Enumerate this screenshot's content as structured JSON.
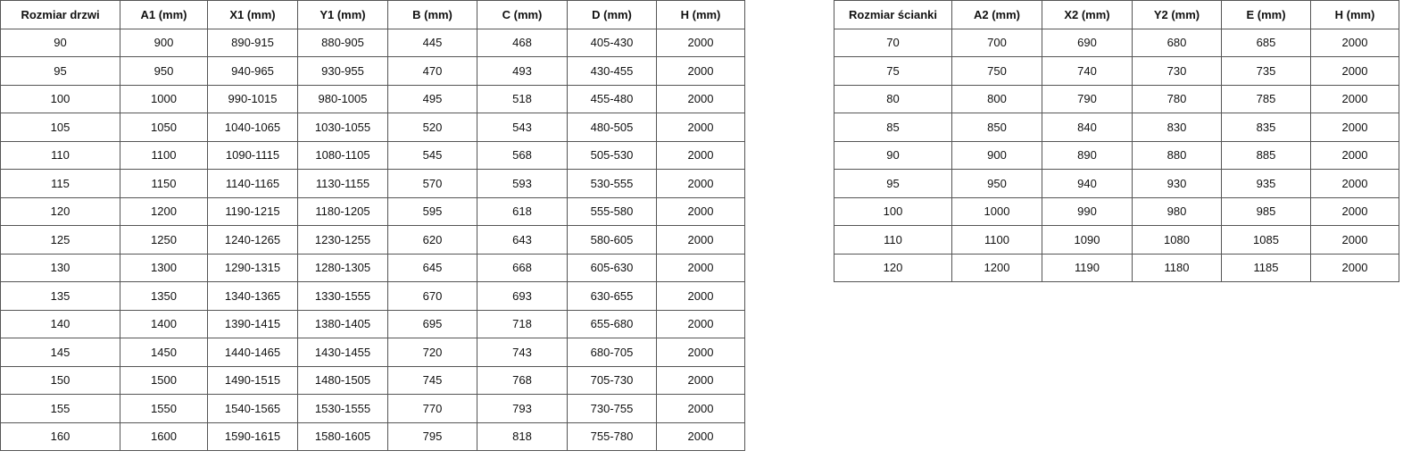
{
  "doors_table": {
    "headers": [
      "Rozmiar drzwi",
      "A1 (mm)",
      "X1 (mm)",
      "Y1 (mm)",
      "B (mm)",
      "C (mm)",
      "D (mm)",
      "H (mm)"
    ],
    "rows": [
      [
        "90",
        "900",
        "890-915",
        "880-905",
        "445",
        "468",
        "405-430",
        "2000"
      ],
      [
        "95",
        "950",
        "940-965",
        "930-955",
        "470",
        "493",
        "430-455",
        "2000"
      ],
      [
        "100",
        "1000",
        "990-1015",
        "980-1005",
        "495",
        "518",
        "455-480",
        "2000"
      ],
      [
        "105",
        "1050",
        "1040-1065",
        "1030-1055",
        "520",
        "543",
        "480-505",
        "2000"
      ],
      [
        "110",
        "1100",
        "1090-1115",
        "1080-1105",
        "545",
        "568",
        "505-530",
        "2000"
      ],
      [
        "115",
        "1150",
        "1140-1165",
        "1130-1155",
        "570",
        "593",
        "530-555",
        "2000"
      ],
      [
        "120",
        "1200",
        "1190-1215",
        "1180-1205",
        "595",
        "618",
        "555-580",
        "2000"
      ],
      [
        "125",
        "1250",
        "1240-1265",
        "1230-1255",
        "620",
        "643",
        "580-605",
        "2000"
      ],
      [
        "130",
        "1300",
        "1290-1315",
        "1280-1305",
        "645",
        "668",
        "605-630",
        "2000"
      ],
      [
        "135",
        "1350",
        "1340-1365",
        "1330-1555",
        "670",
        "693",
        "630-655",
        "2000"
      ],
      [
        "140",
        "1400",
        "1390-1415",
        "1380-1405",
        "695",
        "718",
        "655-680",
        "2000"
      ],
      [
        "145",
        "1450",
        "1440-1465",
        "1430-1455",
        "720",
        "743",
        "680-705",
        "2000"
      ],
      [
        "150",
        "1500",
        "1490-1515",
        "1480-1505",
        "745",
        "768",
        "705-730",
        "2000"
      ],
      [
        "155",
        "1550",
        "1540-1565",
        "1530-1555",
        "770",
        "793",
        "730-755",
        "2000"
      ],
      [
        "160",
        "1600",
        "1590-1615",
        "1580-1605",
        "795",
        "818",
        "755-780",
        "2000"
      ]
    ]
  },
  "wall_table": {
    "headers": [
      "Rozmiar ścianki",
      "A2 (mm)",
      "X2 (mm)",
      "Y2 (mm)",
      "E (mm)",
      "H (mm)"
    ],
    "rows": [
      [
        "70",
        "700",
        "690",
        "680",
        "685",
        "2000"
      ],
      [
        "75",
        "750",
        "740",
        "730",
        "735",
        "2000"
      ],
      [
        "80",
        "800",
        "790",
        "780",
        "785",
        "2000"
      ],
      [
        "85",
        "850",
        "840",
        "830",
        "835",
        "2000"
      ],
      [
        "90",
        "900",
        "890",
        "880",
        "885",
        "2000"
      ],
      [
        "95",
        "950",
        "940",
        "930",
        "935",
        "2000"
      ],
      [
        "100",
        "1000",
        "990",
        "980",
        "985",
        "2000"
      ],
      [
        "110",
        "1100",
        "1090",
        "1080",
        "1085",
        "2000"
      ],
      [
        "120",
        "1200",
        "1190",
        "1180",
        "1185",
        "2000"
      ]
    ]
  }
}
